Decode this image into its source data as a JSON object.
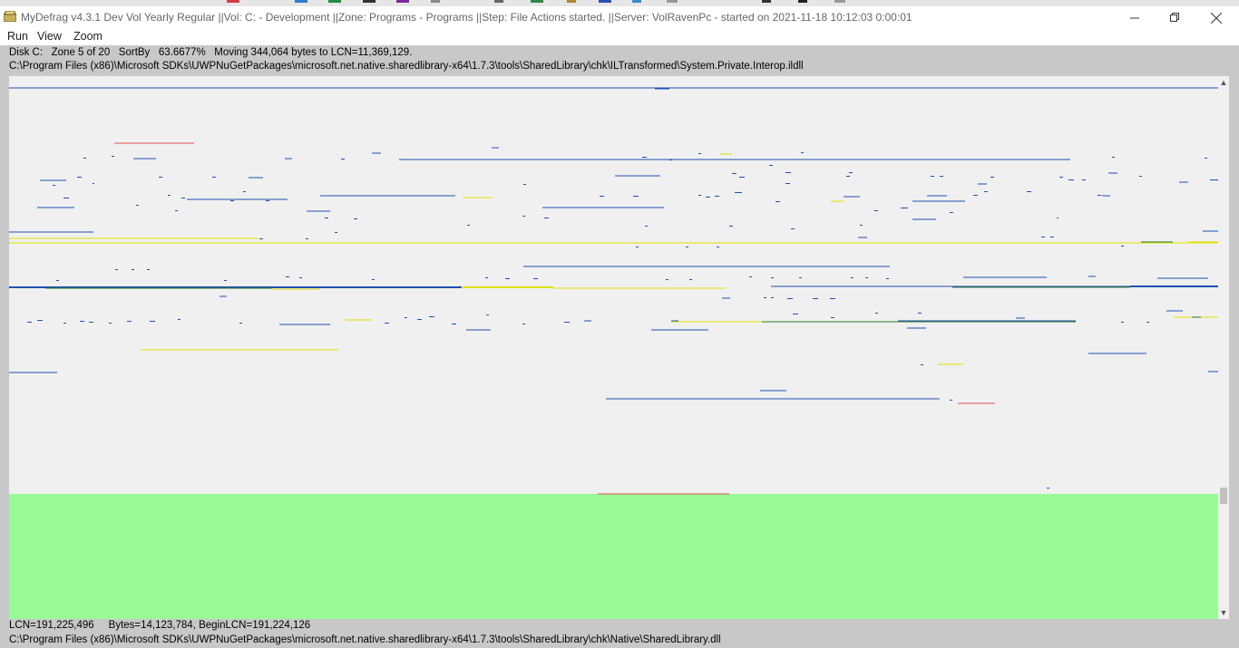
{
  "window": {
    "title": "MyDefrag v4.3.1   Dev Vol Yearly Regular ||Vol: C: - Development ||Zone: Programs - Programs ||Step: File Actions started. ||Server: VolRavenPc -  started on 2021-11-18 10:12:03 0:00:01",
    "minimize_icon": "minimize-icon",
    "restore_icon": "restore-icon",
    "close_icon": "close-icon"
  },
  "menu": {
    "items": [
      "Run",
      "View",
      "Zoom"
    ]
  },
  "status": {
    "line1": "Disk C:   Zone 5 of 20   SortBy   63.6677%   Moving 344,064 bytes to LCN=11,369,129.",
    "line2": "C:\\Program Files (x86)\\Microsoft SDKs\\UWPNuGetPackages\\microsoft.net.native.sharedlibrary-x64\\1.7.3\\tools\\SharedLibrary\\chk\\ILTransformed\\System.Private.Interop.ildll",
    "footer1": "LCN=191,225,496     Bytes=14,123,784, BeginLCN=191,224,126",
    "footer2": "C:\\Program Files (x86)\\Microsoft SDKs\\UWPNuGetPackages\\microsoft.net.native.sharedlibrary-x64\\1.7.3\\tools\\SharedLibrary\\chk\\Native\\SharedLibrary.dll"
  },
  "colors": {
    "background": "#f0f0f0",
    "file_blue": "#1f4fb0",
    "file_yellow": "#e0e000",
    "file_red": "#e05050",
    "file_green": "#2a7a2a",
    "free_space_green": "#98fb98"
  },
  "scrollbar": {
    "up_icon": "scroll-up-icon",
    "down_icon": "scroll-down-icon"
  }
}
